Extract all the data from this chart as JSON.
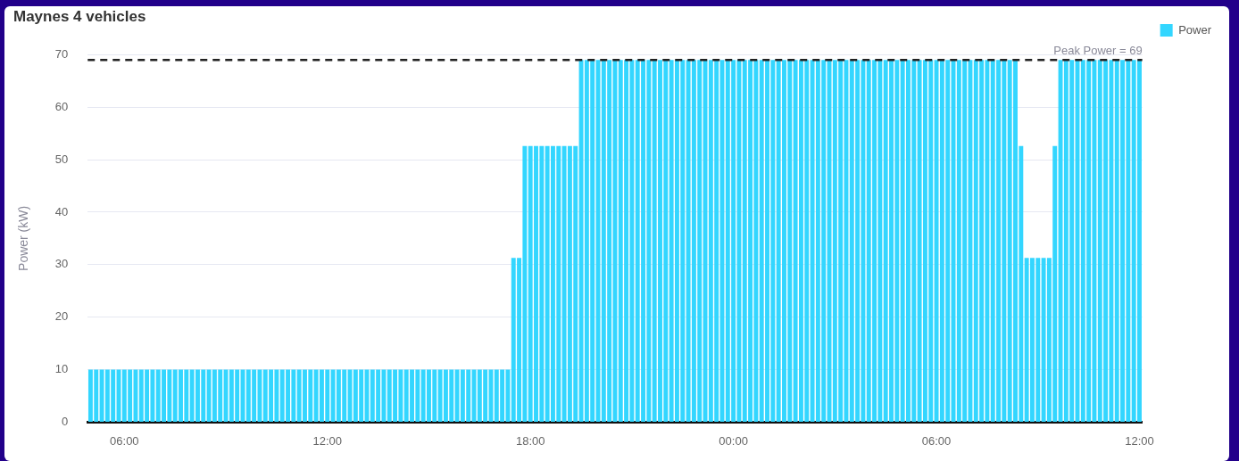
{
  "chart_data": {
    "type": "bar",
    "title": "Maynes 4 vehicles",
    "ylabel": "Power (kW)",
    "categories": [
      null,
      null,
      null,
      null,
      null,
      null,
      "06:00",
      null,
      null,
      null,
      null,
      null,
      null,
      null,
      null,
      null,
      null,
      null,
      null,
      null,
      null,
      null,
      null,
      null,
      null,
      null,
      null,
      null,
      null,
      null,
      null,
      null,
      null,
      null,
      null,
      null,
      null,
      null,
      null,
      null,
      null,
      null,
      "12:00",
      null,
      null,
      null,
      null,
      null,
      null,
      null,
      null,
      null,
      null,
      null,
      null,
      null,
      null,
      null,
      null,
      null,
      null,
      null,
      null,
      null,
      null,
      null,
      null,
      null,
      null,
      null,
      null,
      null,
      null,
      null,
      null,
      null,
      null,
      null,
      "18:00",
      null,
      null,
      null,
      null,
      null,
      null,
      null,
      null,
      null,
      null,
      null,
      null,
      null,
      null,
      null,
      null,
      null,
      null,
      null,
      null,
      null,
      null,
      null,
      null,
      null,
      null,
      null,
      null,
      null,
      null,
      null,
      null,
      null,
      null,
      null,
      "00:00",
      null,
      null,
      null,
      null,
      null,
      null,
      null,
      null,
      null,
      null,
      null,
      null,
      null,
      null,
      null,
      null,
      null,
      null,
      null,
      null,
      null,
      null,
      null,
      null,
      null,
      null,
      null,
      null,
      null,
      null,
      null,
      null,
      null,
      null,
      null,
      "06:00",
      null,
      null,
      null,
      null,
      null,
      null,
      null,
      null,
      null,
      null,
      null,
      null,
      null,
      null,
      null,
      null,
      null,
      null,
      null,
      null,
      null,
      null,
      null,
      null,
      null,
      null,
      null,
      null,
      null,
      null,
      null,
      null,
      null,
      null,
      null,
      "12:00"
    ],
    "series": [
      {
        "name": "Power",
        "color": "#33d6ff",
        "values": [
          10,
          10,
          10,
          10,
          10,
          10,
          10,
          10,
          10,
          10,
          10,
          10,
          10,
          10,
          10,
          10,
          10,
          10,
          10,
          10,
          10,
          10,
          10,
          10,
          10,
          10,
          10,
          10,
          10,
          10,
          10,
          10,
          10,
          10,
          10,
          10,
          10,
          10,
          10,
          10,
          10,
          10,
          10,
          10,
          10,
          10,
          10,
          10,
          10,
          10,
          10,
          10,
          10,
          10,
          10,
          10,
          10,
          10,
          10,
          10,
          10,
          10,
          10,
          10,
          10,
          10,
          10,
          10,
          10,
          10,
          10,
          10,
          10,
          10,
          10,
          31.3,
          31.3,
          52.6,
          52.6,
          52.6,
          52.6,
          52.6,
          52.6,
          52.6,
          52.6,
          52.6,
          52.6,
          69,
          69,
          69,
          69,
          69,
          69,
          69,
          69,
          69,
          69,
          69,
          69,
          69,
          69,
          69,
          69,
          69,
          69,
          69,
          69,
          69,
          69,
          69,
          69,
          69,
          69,
          69,
          69,
          69,
          69,
          69,
          69,
          69,
          69,
          69,
          69,
          69,
          69,
          69,
          69,
          69,
          69,
          69,
          69,
          69,
          69,
          69,
          69,
          69,
          69,
          69,
          69,
          69,
          69,
          69,
          69,
          69,
          69,
          69,
          69,
          69,
          69,
          69,
          69,
          69,
          69,
          69,
          69,
          69,
          69,
          69,
          69,
          69,
          69,
          69,
          69,
          69,
          69,
          52.6,
          31.3,
          31.3,
          31.3,
          31.3,
          31.3,
          52.6,
          69,
          69,
          69,
          69,
          69,
          69,
          69,
          69,
          69,
          69,
          69,
          69,
          69,
          69,
          69
        ]
      }
    ],
    "ylim": [
      0,
      70
    ],
    "yticks": [
      0,
      10,
      20,
      30,
      40,
      50,
      60,
      70
    ],
    "grid": "y",
    "legend": "top right",
    "ref_lines": [
      {
        "axis": "y",
        "value": 69,
        "label": "Peak Power = 69",
        "color": "#222222",
        "line_style": "dashed"
      }
    ]
  }
}
